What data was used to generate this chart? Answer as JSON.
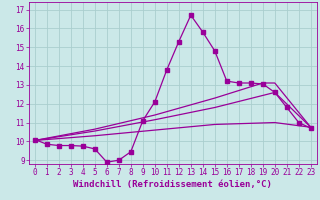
{
  "xlabel": "Windchill (Refroidissement éolien,°C)",
  "background_color": "#cbe8e8",
  "line_color": "#990099",
  "xlim_min": -0.5,
  "xlim_max": 23.5,
  "ylim_min": 8.8,
  "ylim_max": 17.4,
  "yticks": [
    9,
    10,
    11,
    12,
    13,
    14,
    15,
    16,
    17
  ],
  "xticks": [
    0,
    1,
    2,
    3,
    4,
    5,
    6,
    7,
    8,
    9,
    10,
    11,
    12,
    13,
    14,
    15,
    16,
    17,
    18,
    19,
    20,
    21,
    22,
    23
  ],
  "line1_x": [
    0,
    1,
    2,
    3,
    4,
    5,
    6,
    7,
    8,
    9,
    10,
    11,
    12,
    13,
    14,
    15,
    16,
    17,
    18,
    19,
    20,
    21,
    22,
    23
  ],
  "line1_y": [
    10.1,
    9.85,
    9.78,
    9.78,
    9.75,
    9.6,
    8.9,
    9.0,
    9.45,
    11.1,
    12.1,
    13.8,
    15.3,
    16.7,
    15.8,
    14.8,
    13.2,
    13.1,
    13.1,
    13.05,
    12.6,
    11.8,
    11.0,
    10.7
  ],
  "line2_x": [
    0,
    5,
    10,
    15,
    20,
    23
  ],
  "line2_y": [
    10.05,
    10.3,
    10.6,
    10.9,
    11.0,
    10.75
  ],
  "line3_x": [
    0,
    5,
    10,
    15,
    20,
    23
  ],
  "line3_y": [
    10.05,
    10.55,
    11.15,
    11.8,
    12.6,
    10.75
  ],
  "line4_x": [
    0,
    5,
    10,
    15,
    19,
    20,
    23
  ],
  "line4_y": [
    10.05,
    10.65,
    11.4,
    12.3,
    13.1,
    13.1,
    10.75
  ],
  "tick_fontsize": 5.5,
  "xlabel_fontsize": 6.5
}
